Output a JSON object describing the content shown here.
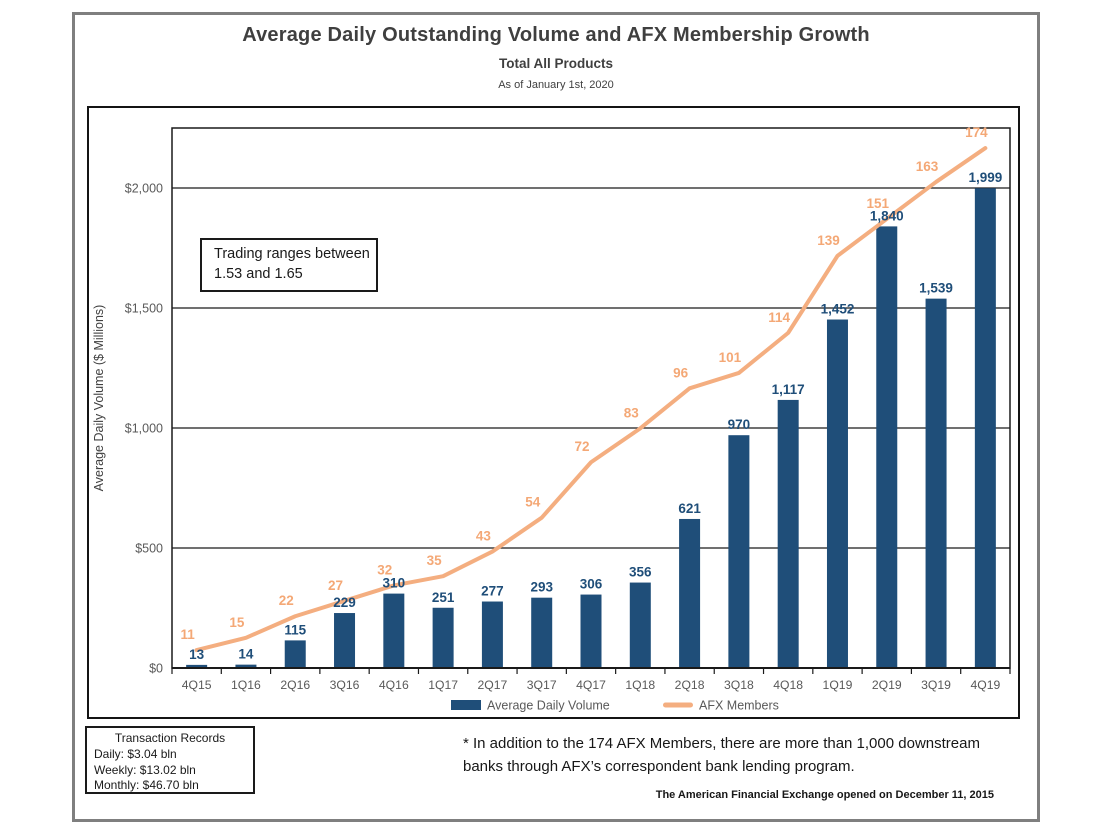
{
  "header": {
    "title": "Average Daily Outstanding Volume and AFX Membership Growth",
    "subtitle": "Total All Products",
    "as_of": "As of January 1st, 2020"
  },
  "annotation_box": {
    "line1": "Trading ranges between",
    "line2": "1.53 and 1.65"
  },
  "transaction_records": {
    "title": "Transaction Records",
    "lines": [
      "Daily: $3.04 bln",
      "Weekly: $13.02 bln",
      "Monthly: $46.70 bln"
    ]
  },
  "footnote": "* In addition to the 174 AFX Members, there are more than 1,000 downstream banks through AFX’s correspondent bank lending program.",
  "footer_note": "The American Financial Exchange opened on December 11, 2015",
  "colors": {
    "bar": "#1F4E79",
    "line": "#F4AE80",
    "bar_label": "#1F4E79",
    "line_label": "#F4A876",
    "axis_text": "#595959",
    "grid": "#1a1a1a",
    "title_text": "#3f3f3f"
  },
  "chart_data": {
    "type": "bar+line combo",
    "title": "Average Daily Outstanding Volume and AFX Membership Growth",
    "subtitle": "Total All Products",
    "as_of": "As of January 1st, 2020",
    "categories": [
      "4Q15",
      "1Q16",
      "2Q16",
      "3Q16",
      "4Q16",
      "1Q17",
      "2Q17",
      "3Q17",
      "4Q17",
      "1Q18",
      "2Q18",
      "3Q18",
      "4Q18",
      "1Q19",
      "2Q19",
      "3Q19",
      "4Q19"
    ],
    "series": [
      {
        "name": "Average Daily Volume",
        "type": "bar",
        "axis": "left",
        "color": "#1F4E79",
        "values": [
          13,
          14,
          115,
          229,
          310,
          251,
          277,
          293,
          306,
          356,
          621,
          970,
          1117,
          1452,
          1840,
          1539,
          1999
        ]
      },
      {
        "name": "AFX Members",
        "type": "line",
        "axis": "right-hidden",
        "color": "#F4AE80",
        "values": [
          11,
          15,
          22,
          27,
          32,
          35,
          43,
          54,
          72,
          83,
          96,
          101,
          114,
          139,
          151,
          163,
          174
        ]
      }
    ],
    "ylabel": "Average Daily Volume ($ Millions)",
    "y_ticks": [
      "$0",
      "$500",
      "$1,000",
      "$1,500",
      "$2,000"
    ],
    "y_tick_values": [
      0,
      500,
      1000,
      1500,
      2000
    ],
    "ylim": [
      0,
      2000
    ],
    "grid": true,
    "data_labels": true,
    "legend_position": "bottom"
  }
}
